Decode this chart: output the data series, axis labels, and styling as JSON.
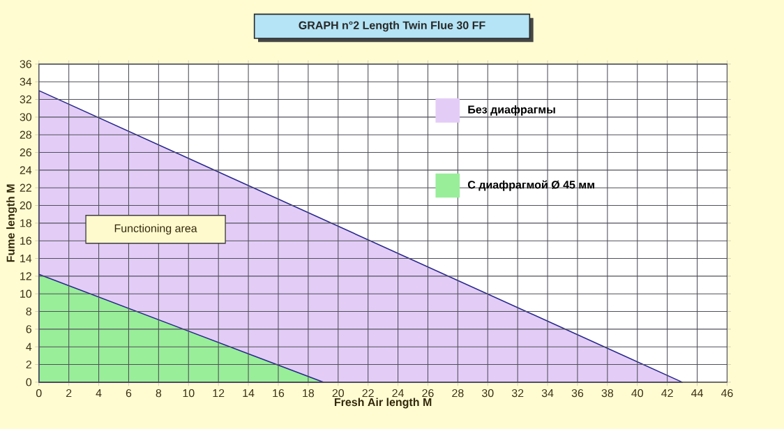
{
  "chart_data": {
    "type": "area",
    "title": "GRAPH n°2 Length Twin Flue 30 FF",
    "xlabel": "Fresh Air length M",
    "ylabel": "Fume length M",
    "series": [
      {
        "name": "Без диафрагмы",
        "color": "#e3cdf7",
        "x": [
          0,
          43
        ],
        "values": [
          33,
          0
        ]
      },
      {
        "name": "С диафрагмой Ø 45 мм",
        "color": "#99ee99",
        "x": [
          0,
          19
        ],
        "values": [
          12.2,
          0
        ]
      }
    ],
    "xlim": [
      0,
      46
    ],
    "ylim": [
      0,
      36
    ],
    "xticks": [
      0,
      2,
      4,
      6,
      8,
      10,
      12,
      14,
      16,
      18,
      20,
      22,
      24,
      26,
      28,
      30,
      32,
      34,
      36,
      38,
      40,
      42,
      44,
      46
    ],
    "yticks": [
      0,
      2,
      4,
      6,
      8,
      10,
      12,
      14,
      16,
      18,
      20,
      22,
      24,
      26,
      28,
      30,
      32,
      34,
      36
    ],
    "grid": true,
    "legend": "top right",
    "annotations": [
      "Functioning area"
    ]
  }
}
